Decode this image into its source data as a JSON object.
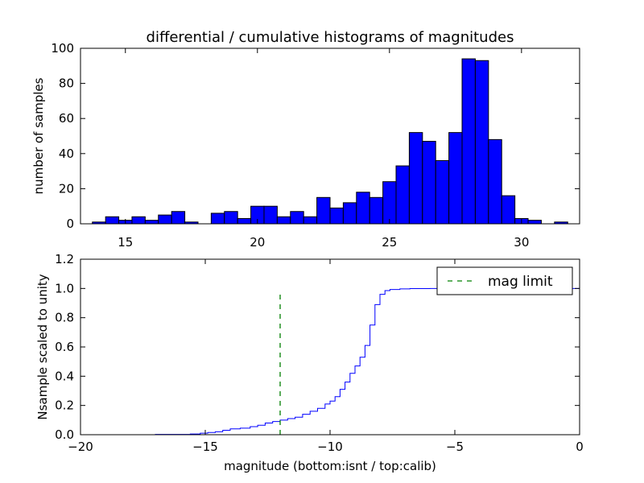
{
  "chart_data": [
    {
      "type": "bar",
      "title": "differential / cumulative histograms of magnitudes",
      "xlabel": "",
      "ylabel": "number of samples",
      "xlim": [
        13.3,
        32.2
      ],
      "ylim": [
        0,
        100
      ],
      "xticks": [
        15,
        20,
        25,
        30
      ],
      "yticks": [
        0,
        20,
        40,
        60,
        80,
        100
      ],
      "bin_width": 0.5,
      "color": "#0000ff",
      "edgecolor": "#000000",
      "bins": [
        {
          "x": 14.0,
          "value": 1
        },
        {
          "x": 14.5,
          "value": 4
        },
        {
          "x": 15.0,
          "value": 2
        },
        {
          "x": 15.5,
          "value": 4
        },
        {
          "x": 16.0,
          "value": 2
        },
        {
          "x": 16.5,
          "value": 5
        },
        {
          "x": 17.0,
          "value": 7
        },
        {
          "x": 17.5,
          "value": 1
        },
        {
          "x": 18.0,
          "value": 0
        },
        {
          "x": 18.5,
          "value": 6
        },
        {
          "x": 19.0,
          "value": 7
        },
        {
          "x": 19.5,
          "value": 3
        },
        {
          "x": 20.0,
          "value": 10
        },
        {
          "x": 20.5,
          "value": 10
        },
        {
          "x": 21.0,
          "value": 4
        },
        {
          "x": 21.5,
          "value": 7
        },
        {
          "x": 22.0,
          "value": 4
        },
        {
          "x": 22.5,
          "value": 15
        },
        {
          "x": 23.0,
          "value": 9
        },
        {
          "x": 23.5,
          "value": 12
        },
        {
          "x": 24.0,
          "value": 18
        },
        {
          "x": 24.5,
          "value": 15
        },
        {
          "x": 25.0,
          "value": 24
        },
        {
          "x": 25.5,
          "value": 33
        },
        {
          "x": 26.0,
          "value": 52
        },
        {
          "x": 26.5,
          "value": 47
        },
        {
          "x": 27.0,
          "value": 36
        },
        {
          "x": 27.5,
          "value": 52
        },
        {
          "x": 28.0,
          "value": 94
        },
        {
          "x": 28.5,
          "value": 93
        },
        {
          "x": 29.0,
          "value": 48
        },
        {
          "x": 29.5,
          "value": 16
        },
        {
          "x": 30.0,
          "value": 3
        },
        {
          "x": 30.5,
          "value": 2
        },
        {
          "x": 31.0,
          "value": 0
        },
        {
          "x": 31.5,
          "value": 1
        }
      ]
    },
    {
      "type": "line",
      "xlabel": "magnitude (bottom:isnt / top:calib)",
      "ylabel": "Nsample scaled to unity",
      "xlim": [
        -20,
        0
      ],
      "ylim": [
        0,
        1.2
      ],
      "xticks": [
        -20,
        -15,
        -10,
        -5,
        0
      ],
      "yticks": [
        0.0,
        0.2,
        0.4,
        0.6,
        0.8,
        1.0,
        1.2
      ],
      "series": [
        {
          "style": "step",
          "color": "#0000ff",
          "x": [
            -20.0,
            -17.0,
            -15.6,
            -15.2,
            -14.9,
            -14.6,
            -14.3,
            -14.0,
            -13.6,
            -13.2,
            -12.9,
            -12.6,
            -12.3,
            -12.0,
            -11.7,
            -11.4,
            -11.1,
            -10.8,
            -10.5,
            -10.2,
            -10.0,
            -9.8,
            -9.6,
            -9.4,
            -9.2,
            -9.0,
            -8.8,
            -8.6,
            -8.4,
            -8.2,
            -8.0,
            -7.8,
            -7.6,
            -7.2,
            -6.8,
            -6.0,
            -5.0,
            -3.0,
            -0.05
          ],
          "y": [
            0.0,
            0.002,
            0.005,
            0.01,
            0.015,
            0.02,
            0.03,
            0.04,
            0.045,
            0.055,
            0.065,
            0.08,
            0.09,
            0.1,
            0.11,
            0.12,
            0.14,
            0.16,
            0.18,
            0.21,
            0.23,
            0.26,
            0.31,
            0.36,
            0.42,
            0.47,
            0.53,
            0.61,
            0.75,
            0.89,
            0.96,
            0.985,
            0.993,
            0.997,
            0.999,
            1.0,
            1.0,
            1.0,
            1.0
          ]
        },
        {
          "name": "mag limit",
          "style": "dashed",
          "color": "#008000",
          "x": [
            -12.0,
            -12.0
          ],
          "y": [
            0.0,
            0.97
          ]
        }
      ],
      "legend_placement": "top-right"
    }
  ]
}
